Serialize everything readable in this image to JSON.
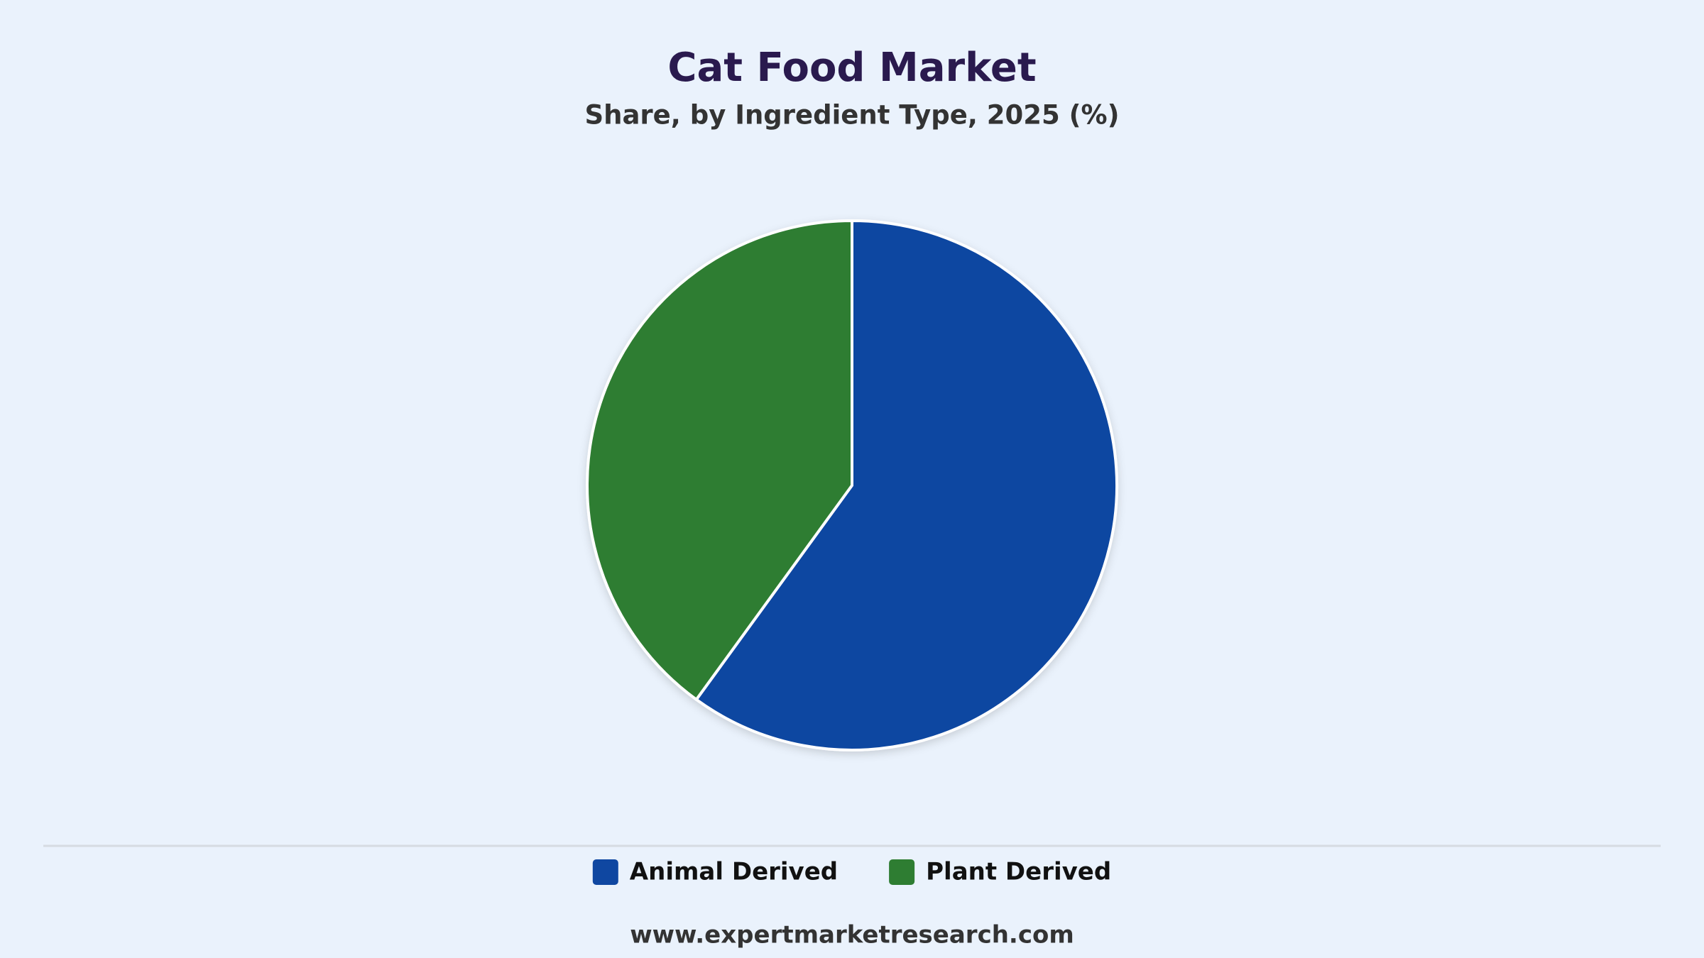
{
  "chart_data": {
    "type": "pie",
    "title": "Cat Food Market",
    "subtitle": "Share, by Ingredient Type, 2025 (%)",
    "categories": [
      "Animal Derived",
      "Plant Derived"
    ],
    "values": [
      60,
      40
    ],
    "colors": [
      "#0f47a1",
      "#2e7d32"
    ],
    "legend": "bottom",
    "source": "www.expertmarketresearch.com"
  }
}
